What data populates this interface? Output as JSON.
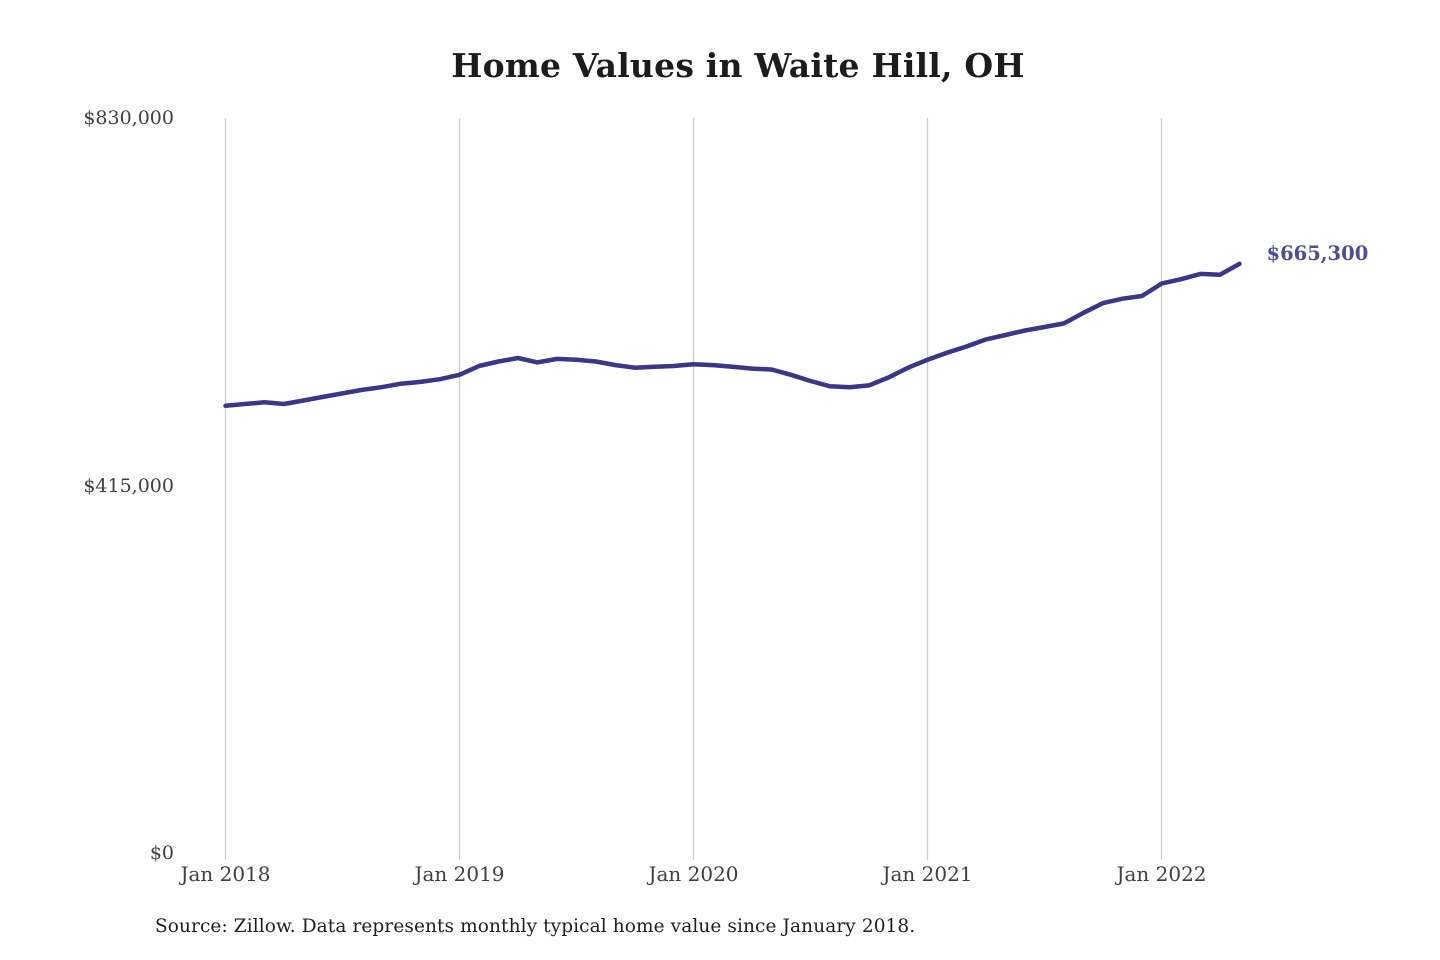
{
  "chart": {
    "title": "Home Values in Waite Hill, OH",
    "end_label": "$665,300",
    "source": "Source: Zillow. Data represents monthly typical home value since January 2018.",
    "colors": {
      "line": "#3b3689",
      "end_label": "#4e4d95",
      "gridline": "#cccccc",
      "axis_text": "#3f3f3f",
      "title_text": "#1c1c1c",
      "background": "#ffffff"
    }
  },
  "chart_data": {
    "type": "line",
    "title": "Home Values in Waite Hill, OH",
    "x_unit": "month",
    "x_range": [
      "Jan 2018",
      "May 2022"
    ],
    "x_tick_labels": [
      "Jan 2018",
      "Jan 2019",
      "Jan 2020",
      "Jan 2021",
      "Jan 2022"
    ],
    "x_tick_month_indices": [
      0,
      12,
      24,
      36,
      48
    ],
    "y_tick_labels": [
      "$0",
      "$415,000",
      "$830,000"
    ],
    "y_tick_values": [
      0,
      415000,
      830000
    ],
    "ylim": [
      0,
      830000
    ],
    "grid": "vertical-only",
    "legend": "none",
    "end_value": 665300,
    "end_value_label": "$665,300",
    "series": [
      {
        "name": "Typical home value",
        "months": "Jan 2018 through May 2022, monthly",
        "values": [
          505000,
          507000,
          509000,
          507000,
          511000,
          515000,
          519000,
          523000,
          526000,
          530000,
          532000,
          535000,
          540000,
          550000,
          555000,
          559000,
          554000,
          558000,
          557000,
          555000,
          551000,
          548000,
          549000,
          550000,
          552000,
          551000,
          549000,
          547000,
          546000,
          540000,
          533000,
          527000,
          526000,
          528000,
          537000,
          548000,
          557000,
          565000,
          572000,
          580000,
          585000,
          590000,
          594000,
          598000,
          610000,
          621000,
          626000,
          629000,
          643000,
          648000,
          654000,
          653000,
          665300
        ]
      }
    ]
  }
}
